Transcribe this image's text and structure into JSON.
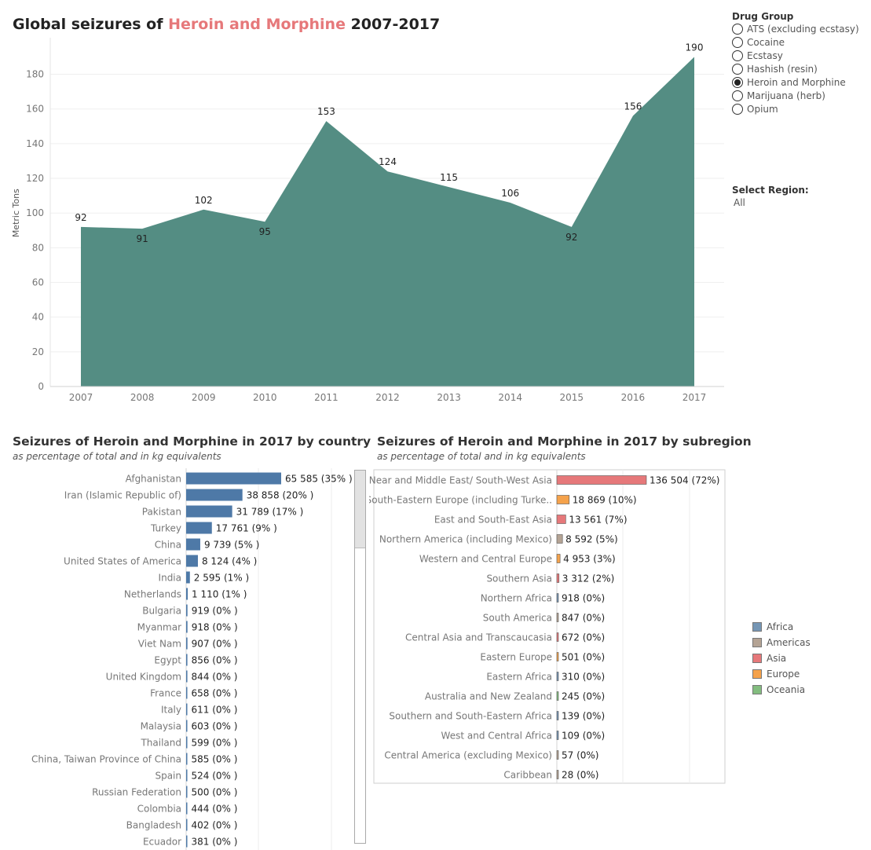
{
  "title": {
    "prefix": "Global seizures of",
    "drug": "Heroin and Morphine",
    "years": "2007-2017"
  },
  "drug_filter": {
    "label": "Drug Group",
    "options": [
      "ATS (excluding ecstasy)",
      "Cocaine",
      "Ecstasy",
      "Hashish (resin)",
      "Heroin and Morphine",
      "Marijuana (herb)",
      "Opium"
    ],
    "selected": "Heroin and Morphine"
  },
  "region_filter": {
    "label": "Select Region:",
    "value": "All"
  },
  "country_panel": {
    "title": "Seizures of Heroin and Morphine  in 2017 by country",
    "subtitle": "as percentage of total and in kg equivalents"
  },
  "subregion_panel": {
    "title": "Seizures of Heroin and Morphine in 2017 by subregion",
    "subtitle": "as percentage of total and in kg equivalents"
  },
  "legend": {
    "items": [
      {
        "label": "Africa",
        "color": "#7596b5"
      },
      {
        "label": "Americas",
        "color": "#b4a394"
      },
      {
        "label": "Asia",
        "color": "#e6787a"
      },
      {
        "label": "Europe",
        "color": "#f5a24b"
      },
      {
        "label": "Oceania",
        "color": "#83bd7f"
      }
    ]
  },
  "chart_data": [
    {
      "type": "area",
      "ylabel": "Metric Tons",
      "x": [
        "2007",
        "2008",
        "2009",
        "2010",
        "2011",
        "2012",
        "2013",
        "2014",
        "2015",
        "2016",
        "2017"
      ],
      "values": [
        92,
        91,
        102,
        95,
        153,
        124,
        115,
        106,
        92,
        156,
        190
      ],
      "ylim": [
        0,
        195
      ],
      "yticks": [
        0,
        20,
        40,
        60,
        80,
        100,
        120,
        140,
        160,
        180
      ],
      "color": "#4b877c",
      "grid": true
    },
    {
      "type": "bar",
      "orientation": "horizontal",
      "color": "#4e79a7",
      "categories": [
        "Afghanistan",
        "Iran (Islamic Republic of)",
        "Pakistan",
        "Turkey",
        "China",
        "United States of America",
        "India",
        "Netherlands",
        "Bulgaria",
        "Myanmar",
        "Viet Nam",
        "Egypt",
        "United Kingdom",
        "France",
        "Italy",
        "Malaysia",
        "Thailand",
        "China, Taiwan Province of China",
        "Spain",
        "Russian Federation",
        "Colombia",
        "Bangladesh",
        "Ecuador"
      ],
      "values": [
        65585,
        38858,
        31789,
        17761,
        9739,
        8124,
        2595,
        1110,
        919,
        918,
        907,
        856,
        844,
        658,
        611,
        603,
        599,
        585,
        524,
        500,
        444,
        402,
        381
      ],
      "labels": [
        "65 585 (35% )",
        "38 858 (20% )",
        "31 789 (17% )",
        "17 761 (9% )",
        "9 739 (5% )",
        "8 124 (4% )",
        "2 595 (1% )",
        "1 110 (1% )",
        "919 (0% )",
        "918 (0% )",
        "907 (0% )",
        "856 (0% )",
        "844 (0% )",
        "658 (0% )",
        "611 (0% )",
        "603 (0% )",
        "599 (0% )",
        "585 (0% )",
        "524 (0% )",
        "500 (0% )",
        "444 (0% )",
        "402 (0% )",
        "381 (0% )"
      ]
    },
    {
      "type": "bar",
      "orientation": "horizontal",
      "categories": [
        "Near and Middle East/ South-West Asia",
        "South-Eastern Europe (including Turke..",
        "East and South-East Asia",
        "Northern America (including Mexico)",
        "Western and Central Europe",
        "Southern Asia",
        "Northern Africa",
        "South America",
        "Central Asia and Transcaucasia",
        "Eastern Europe",
        "Eastern Africa",
        "Australia and New Zealand",
        "Southern and South-Eastern Africa",
        "West and Central Africa",
        "Central America (excluding Mexico)",
        "Caribbean"
      ],
      "values": [
        136504,
        18869,
        13561,
        8592,
        4953,
        3312,
        918,
        847,
        672,
        501,
        310,
        245,
        139,
        109,
        57,
        28
      ],
      "labels": [
        "136 504 (72%)",
        "18 869 (10%)",
        "13 561 (7%)",
        "8 592 (5%)",
        "4 953 (3%)",
        "3 312 (2%)",
        "918 (0%)",
        "847 (0%)",
        "672 (0%)",
        "501 (0%)",
        "310 (0%)",
        "245 (0%)",
        "139 (0%)",
        "109 (0%)",
        "57 (0%)",
        "28 (0%)"
      ],
      "regions": [
        "Asia",
        "Europe",
        "Asia",
        "Americas",
        "Europe",
        "Asia",
        "Africa",
        "Americas",
        "Asia",
        "Europe",
        "Africa",
        "Oceania",
        "Africa",
        "Africa",
        "Americas",
        "Americas"
      ]
    }
  ]
}
